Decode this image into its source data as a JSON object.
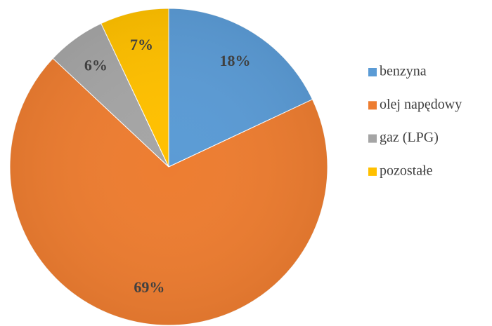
{
  "chart_data": {
    "type": "pie",
    "categories": [
      "benzyna",
      "olej napędowy",
      "gaz (LPG)",
      "pozostałe"
    ],
    "values": [
      18,
      69,
      6,
      7
    ],
    "value_labels": [
      "18%",
      "69%",
      "6%",
      "7%"
    ],
    "colors": [
      "#5b9bd5",
      "#ed7d31",
      "#a5a5a5",
      "#ffc000"
    ],
    "legend": "right"
  }
}
